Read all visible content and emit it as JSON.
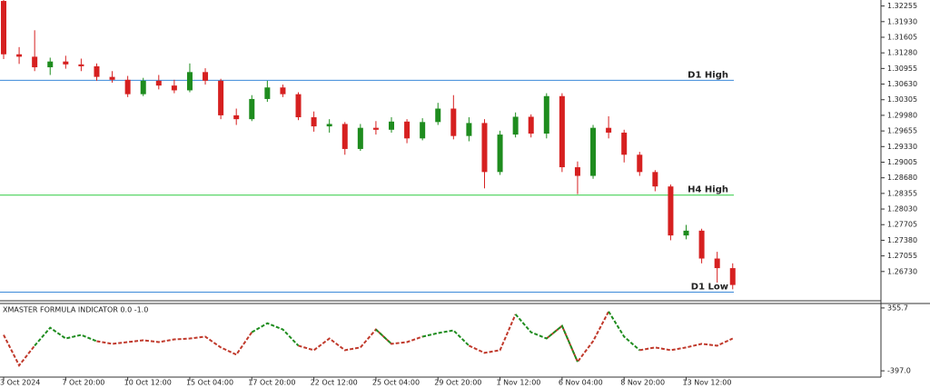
{
  "chart_data": [
    {
      "type": "candlestick",
      "categories": [
        "3 Oct 2024",
        null,
        null,
        null,
        "7 Oct 20:00",
        null,
        null,
        null,
        "10 Oct 12:00",
        null,
        null,
        null,
        "15 Oct 04:00",
        null,
        null,
        null,
        "17 Oct 20:00",
        null,
        null,
        null,
        "22 Oct 12:00",
        null,
        null,
        null,
        "25 Oct 04:00",
        null,
        null,
        null,
        "29 Oct 20:00",
        null,
        null,
        null,
        "1 Nov 12:00",
        null,
        null,
        null,
        "6 Nov 04:00",
        null,
        null,
        null,
        "8 Nov 20:00",
        null,
        null,
        null,
        "13 Nov 12:00",
        null,
        null,
        null
      ],
      "open": [
        1.3236,
        1.3125,
        1.312,
        1.3098,
        1.311,
        1.3104,
        1.31,
        1.3078,
        1.3072,
        1.3042,
        1.307,
        1.306,
        1.305,
        1.3088,
        1.307,
        1.2998,
        1.299,
        1.3032,
        1.3056,
        1.3042,
        1.2994,
        1.2975,
        1.298,
        1.2928,
        1.2972,
        1.2968,
        1.2985,
        1.295,
        1.2984,
        1.3012,
        1.2955,
        1.2982,
        1.288,
        1.2958,
        1.2995,
        1.296,
        1.3038,
        1.289,
        1.2872,
        1.2972,
        1.2962,
        1.2916,
        1.288,
        1.285,
        1.2748,
        1.2758,
        1.27,
        1.268
      ],
      "high": [
        1.3238,
        1.314,
        1.3175,
        1.3118,
        1.3122,
        1.3116,
        1.3106,
        1.309,
        1.308,
        1.3076,
        1.3082,
        1.3072,
        1.3106,
        1.3096,
        1.3074,
        1.3012,
        1.304,
        1.307,
        1.3062,
        1.3046,
        1.3006,
        1.299,
        1.2984,
        1.298,
        1.2986,
        1.2994,
        1.299,
        1.2992,
        1.3024,
        1.304,
        1.2994,
        1.299,
        1.2966,
        1.3004,
        1.3,
        1.3044,
        1.3044,
        1.2902,
        1.2978,
        1.2996,
        1.2968,
        1.2922,
        1.2884,
        1.2854,
        1.277,
        1.2762,
        1.2714,
        1.269
      ],
      "low": [
        1.3115,
        1.3105,
        1.309,
        1.3082,
        1.3095,
        1.309,
        1.307,
        1.3066,
        1.3036,
        1.3038,
        1.3052,
        1.3044,
        1.3046,
        1.3062,
        1.299,
        1.2978,
        1.2986,
        1.3026,
        1.3036,
        1.2988,
        1.2964,
        1.2962,
        1.2916,
        1.2924,
        1.2958,
        1.2962,
        1.294,
        1.2946,
        1.2978,
        1.2948,
        1.2944,
        1.2846,
        1.2874,
        1.2952,
        1.2952,
        1.295,
        1.288,
        1.2834,
        1.2866,
        1.295,
        1.29,
        1.2872,
        1.284,
        1.2738,
        1.274,
        1.269,
        1.265,
        1.2636
      ],
      "close": [
        1.3125,
        1.312,
        1.3098,
        1.311,
        1.3104,
        1.31,
        1.3078,
        1.3072,
        1.3042,
        1.307,
        1.306,
        1.305,
        1.3088,
        1.307,
        1.2998,
        1.299,
        1.3032,
        1.3056,
        1.3042,
        1.2994,
        1.2975,
        1.298,
        1.2928,
        1.2972,
        1.2968,
        1.2985,
        1.295,
        1.2984,
        1.3012,
        1.2955,
        1.2982,
        1.288,
        1.2958,
        1.2995,
        1.296,
        1.3038,
        1.289,
        1.2872,
        1.2972,
        1.2962,
        1.2916,
        1.288,
        1.285,
        1.2748,
        1.2758,
        1.27,
        1.268,
        1.2645
      ],
      "up_color": "#1e8c1e",
      "down_color": "#d62020",
      "ylim": [
        1.2614,
        1.3238
      ],
      "yticks": [
        1.32255,
        {
          "value": 1.3193,
          "label": "1.31930"
        },
        1.31605,
        {
          "value": 1.3128,
          "label": "1.31280"
        },
        1.30955,
        {
          "value": 1.3063,
          "label": "1.30630"
        },
        1.30305,
        {
          "value": 1.2998,
          "label": "1.29980"
        },
        1.29655,
        {
          "value": 1.2933,
          "label": "1.29330"
        },
        1.29005,
        {
          "value": 1.2868,
          "label": "1.28680"
        },
        1.28355,
        {
          "value": 1.2803,
          "label": "1.28030"
        },
        1.27705,
        {
          "value": 1.2738,
          "label": "1.27380"
        },
        1.27055,
        {
          "value": 1.2673,
          "label": "1.26730"
        }
      ],
      "levels": [
        {
          "name": "D1 High",
          "value": 1.3071,
          "color": "#3b8ad9"
        },
        {
          "name": "H4 High",
          "value": 1.2832,
          "color": "#2ecc40"
        },
        {
          "name": "D1 Low",
          "value": 1.263,
          "color": "#3b8ad9"
        }
      ]
    },
    {
      "type": "line",
      "title": "XMASTER FORMULA INDICATOR 0.0 -1.0",
      "series": [
        {
          "color": "#c0392b",
          "values": [
            33,
            -332,
            -96,
            null,
            null,
            null,
            -42,
            -74,
            -53,
            -31,
            -53,
            -21,
            -10,
            12,
            -117,
            -203,
            65,
            null,
            null,
            -96,
            -150,
            -10,
            -150,
            -117,
            98,
            -74,
            -53,
            12,
            null,
            null,
            -96,
            -182,
            -150,
            280,
            null,
            -10,
            141,
            -289,
            -42,
            313,
            null,
            -150,
            -117,
            -150,
            -117,
            -74,
            -96,
            -10
          ]
        },
        {
          "color": "#1e8c1e",
          "values": [
            null,
            null,
            -96,
            119,
            -10,
            33,
            -42,
            null,
            null,
            null,
            null,
            null,
            null,
            null,
            null,
            null,
            65,
            173,
            98,
            -96,
            null,
            null,
            null,
            null,
            98,
            -74,
            null,
            12,
            55,
            87,
            -96,
            null,
            null,
            280,
            65,
            -10,
            141,
            -289,
            null,
            313,
            12,
            -150,
            null,
            null,
            null,
            null,
            null,
            null
          ]
        }
      ],
      "ylim": [
        -472,
        409
      ],
      "yticks": [
        355.7,
        {
          "value": -397,
          "label": "-397.0"
        }
      ]
    }
  ]
}
